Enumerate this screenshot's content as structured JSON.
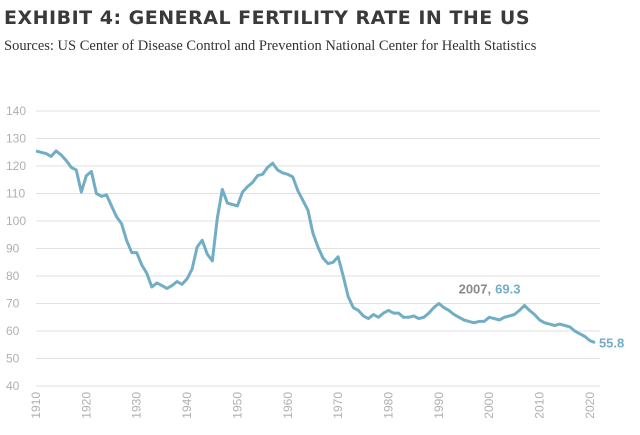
{
  "chart_data": {
    "type": "line",
    "title": "EXHIBIT 4: GENERAL FERTILITY RATE IN THE US",
    "subtitle": "Sources: US Center of Disease Control and Prevention National Center for Health Statistics",
    "x": [
      1910,
      1911,
      1912,
      1913,
      1914,
      1915,
      1916,
      1917,
      1918,
      1919,
      1920,
      1921,
      1922,
      1923,
      1924,
      1925,
      1926,
      1927,
      1928,
      1929,
      1930,
      1931,
      1932,
      1933,
      1934,
      1935,
      1936,
      1937,
      1938,
      1939,
      1940,
      1941,
      1942,
      1943,
      1944,
      1945,
      1946,
      1947,
      1948,
      1949,
      1950,
      1951,
      1952,
      1953,
      1954,
      1955,
      1956,
      1957,
      1958,
      1959,
      1960,
      1961,
      1962,
      1963,
      1964,
      1965,
      1966,
      1967,
      1968,
      1969,
      1970,
      1971,
      1972,
      1973,
      1974,
      1975,
      1976,
      1977,
      1978,
      1979,
      1980,
      1981,
      1982,
      1983,
      1984,
      1985,
      1986,
      1987,
      1988,
      1989,
      1990,
      1991,
      1992,
      1993,
      1994,
      1995,
      1996,
      1997,
      1998,
      1999,
      2000,
      2001,
      2002,
      2003,
      2004,
      2005,
      2006,
      2007,
      2008,
      2009,
      2010,
      2011,
      2012,
      2013,
      2014,
      2015,
      2016,
      2017,
      2018,
      2019,
      2020,
      2021
    ],
    "values": [
      125.5,
      125.0,
      124.5,
      123.5,
      125.5,
      124.0,
      122.0,
      119.5,
      118.5,
      110.5,
      116.5,
      118.0,
      110.0,
      109.0,
      109.5,
      105.5,
      101.5,
      99.0,
      93.0,
      88.5,
      88.5,
      84.0,
      81.0,
      76.0,
      77.5,
      76.5,
      75.5,
      76.5,
      78.0,
      77.0,
      79.0,
      82.5,
      90.5,
      93.0,
      88.0,
      85.5,
      101.0,
      111.5,
      106.5,
      106.0,
      105.5,
      110.5,
      112.5,
      114.0,
      116.5,
      117.0,
      119.5,
      121.0,
      118.5,
      117.5,
      117.0,
      116.0,
      111.0,
      107.5,
      104.0,
      95.5,
      90.5,
      86.5,
      84.5,
      85.0,
      87.0,
      80.0,
      72.5,
      68.5,
      67.5,
      65.5,
      64.5,
      66.0,
      65.0,
      66.5,
      67.5,
      66.5,
      66.5,
      65.0,
      65.0,
      65.5,
      64.5,
      65.0,
      66.5,
      68.5,
      70.0,
      68.5,
      67.5,
      66.0,
      65.0,
      64.0,
      63.5,
      63.0,
      63.5,
      63.5,
      65.0,
      64.5,
      64.0,
      65.0,
      65.5,
      66.0,
      67.5,
      69.3,
      67.5,
      66.0,
      64.0,
      63.0,
      62.5,
      62.0,
      62.5,
      62.0,
      61.5,
      60.0,
      59.0,
      58.0,
      56.5,
      55.8
    ],
    "color": "#72adc6",
    "annotation": "2007,",
    "xlim": [
      1910,
      2022
    ],
    "ylim": [
      40,
      140
    ],
    "xticks": [
      1910,
      1920,
      1930,
      1940,
      1950,
      1960,
      1970,
      1980,
      1990,
      2000,
      2010,
      2020
    ],
    "yticks": [
      40,
      50,
      60,
      70,
      80,
      90,
      100,
      110,
      120,
      130,
      140
    ],
    "grid": true
  }
}
